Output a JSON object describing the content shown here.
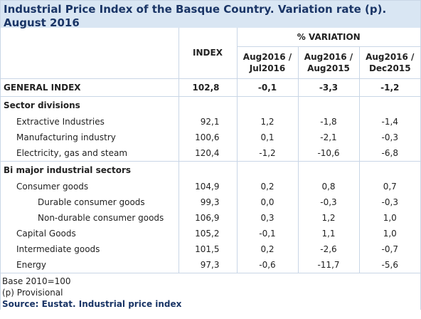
{
  "title": "Industrial Price Index of the Basque Country. Variation rate (p). August 2016",
  "header": {
    "variation": "% VARIATION",
    "index": "INDEX",
    "col1": "Aug2016 / Jul2016",
    "col2": "Aug2016 / Aug2015",
    "col3": "Aug2016 / Dec2015"
  },
  "general": {
    "label": "GENERAL INDEX",
    "index": "102,8",
    "v1": "-0,1",
    "v2": "-3,3",
    "v3": "-1,2"
  },
  "sector_divisions": {
    "title": "Sector divisions",
    "rows": [
      {
        "label": "Extractive Industries",
        "index": "92,1",
        "v1": "1,2",
        "v2": "-1,8",
        "v3": "-1,4"
      },
      {
        "label": "Manufacturing industry",
        "index": "100,6",
        "v1": "0,1",
        "v2": "-2,1",
        "v3": "-0,3"
      },
      {
        "label": "Electricity, gas and steam",
        "index": "120,4",
        "v1": "-1,2",
        "v2": "-10,6",
        "v3": "-6,8"
      }
    ]
  },
  "major_sectors": {
    "title": "Bi major industrial sectors",
    "rows": [
      {
        "label": "Consumer goods",
        "index": "104,9",
        "v1": "0,2",
        "v2": "0,8",
        "v3": "0,7"
      },
      {
        "label": "Durable consumer goods",
        "index": "99,3",
        "v1": "0,0",
        "v2": "-0,3",
        "v3": "-0,3"
      },
      {
        "label": "Non-durable consumer goods",
        "index": "106,9",
        "v1": "0,3",
        "v2": "1,2",
        "v3": "1,0"
      },
      {
        "label": "Capital Goods",
        "index": "105,2",
        "v1": "-0,1",
        "v2": "1,1",
        "v3": "1,0"
      },
      {
        "label": "Intermediate goods",
        "index": "101,5",
        "v1": "0,2",
        "v2": "-2,6",
        "v3": "-0,7"
      },
      {
        "label": "Energy",
        "index": "97,3",
        "v1": "-0,6",
        "v2": "-11,7",
        "v3": "-5,6"
      }
    ]
  },
  "footer": {
    "base": "Base 2010=100",
    "provisional": "(p) Provisional",
    "source": "Source: Eustat. Industrial price index"
  }
}
